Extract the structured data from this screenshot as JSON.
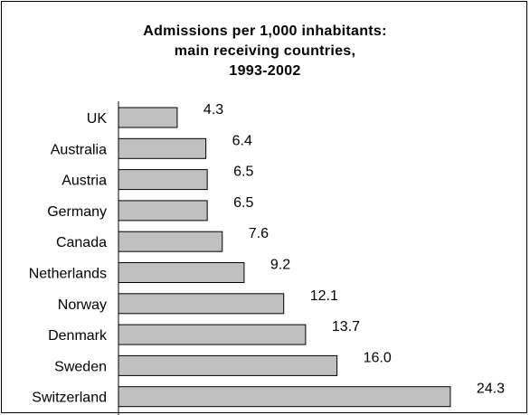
{
  "chart_data": {
    "type": "bar",
    "orientation": "horizontal",
    "title_lines": [
      "Admissions per 1,000 inhabitants:",
      "main receiving countries,",
      "1993-2002"
    ],
    "categories": [
      "UK",
      "Australia",
      "Austria",
      "Germany",
      "Canada",
      "Netherlands",
      "Norway",
      "Denmark",
      "Sweden",
      "Switzerland"
    ],
    "values": [
      4.3,
      6.4,
      6.5,
      6.5,
      7.6,
      9.2,
      12.1,
      13.7,
      16.0,
      24.3
    ],
    "value_labels": [
      "4.3",
      "6.4",
      "6.5",
      "6.5",
      "7.6",
      "9.2",
      "12.1",
      "13.7",
      "16.0",
      "24.3"
    ],
    "bar_color": "#c0c0c0",
    "bar_border_color": "#000000",
    "legend": "none",
    "grid": false
  }
}
